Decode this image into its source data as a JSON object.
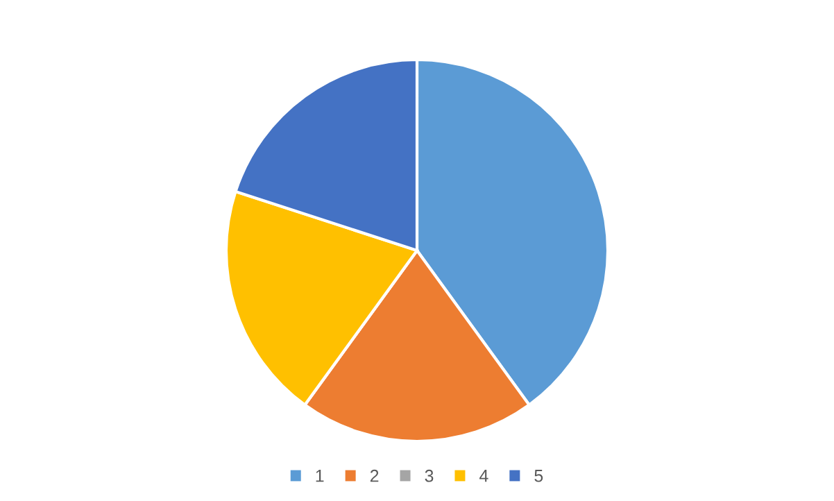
{
  "chart_data": {
    "type": "pie",
    "categories": [
      "1",
      "2",
      "3",
      "4",
      "5"
    ],
    "values": [
      40,
      20,
      0,
      20,
      20
    ],
    "colors": [
      "#5b9bd5",
      "#ed7d31",
      "#a5a5a5",
      "#ffc000",
      "#4472c4"
    ],
    "legend": "bottom"
  }
}
